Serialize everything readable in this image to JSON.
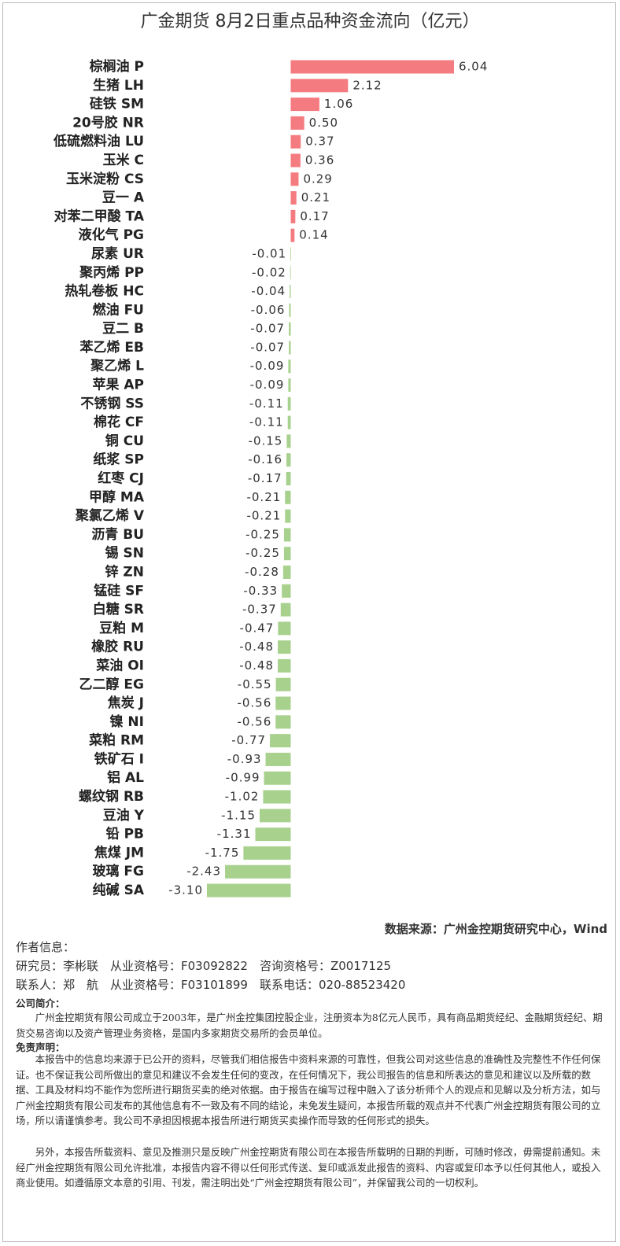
{
  "chart_data": {
    "type": "bar",
    "orientation": "horizontal",
    "title": "广金期货 8月2日重点品种资金流向（亿元）",
    "categories": [
      "棕榈油 P",
      "生猪 LH",
      "硅铁 SM",
      "20号胶 NR",
      "低硫燃料油 LU",
      "玉米 C",
      "玉米淀粉 CS",
      "豆一 A",
      "对苯二甲酸 TA",
      "液化气 PG",
      "尿素 UR",
      "聚丙烯 PP",
      "热轧卷板 HC",
      "燃油 FU",
      "豆二 B",
      "苯乙烯 EB",
      "聚乙烯 L",
      "苹果 AP",
      "不锈钢 SS",
      "棉花 CF",
      "铜 CU",
      "纸浆 SP",
      "红枣 CJ",
      "甲醇 MA",
      "聚氯乙烯 V",
      "沥青 BU",
      "锡 SN",
      "锌 ZN",
      "锰硅 SF",
      "白糖 SR",
      "豆粕 M",
      "橡胶 RU",
      "菜油 OI",
      "乙二醇 EG",
      "焦炭 J",
      "镍 NI",
      "菜粕 RM",
      "铁矿石 I",
      "铝 AL",
      "螺纹钢 RB",
      "豆油 Y",
      "铅 PB",
      "焦煤 JM",
      "玻璃 FG",
      "纯碱 SA"
    ],
    "values": [
      6.04,
      2.12,
      1.06,
      0.5,
      0.37,
      0.36,
      0.29,
      0.21,
      0.17,
      0.14,
      -0.01,
      -0.02,
      -0.04,
      -0.06,
      -0.07,
      -0.07,
      -0.09,
      -0.09,
      -0.11,
      -0.11,
      -0.15,
      -0.16,
      -0.17,
      -0.21,
      -0.21,
      -0.25,
      -0.25,
      -0.28,
      -0.33,
      -0.37,
      -0.47,
      -0.48,
      -0.48,
      -0.55,
      -0.56,
      -0.56,
      -0.77,
      -0.93,
      -0.99,
      -1.02,
      -1.15,
      -1.31,
      -1.75,
      -2.43,
      -3.1
    ],
    "value_labels": [
      "6.04",
      "2.12",
      "1.06",
      "0.50",
      "0.37",
      "0.36",
      "0.29",
      "0.21",
      "0.17",
      "0.14",
      "-0.01",
      "-0.02",
      "-0.04",
      "-0.06",
      "-0.07",
      "-0.07",
      "-0.09",
      "-0.09",
      "-0.11",
      "-0.11",
      "-0.15",
      "-0.16",
      "-0.17",
      "-0.21",
      "-0.21",
      "-0.25",
      "-0.25",
      "-0.28",
      "-0.33",
      "-0.37",
      "-0.47",
      "-0.48",
      "-0.48",
      "-0.55",
      "-0.56",
      "-0.56",
      "-0.77",
      "-0.93",
      "-0.99",
      "-1.02",
      "-1.15",
      "-1.31",
      "-1.75",
      "-2.43",
      "-3.10"
    ],
    "color_positive": "#f47b7f",
    "color_negative": "#a9d18e"
  },
  "footer": {
    "source": "数据来源：广州金控期货研究中心，Wind",
    "author_heading": "作者信息：",
    "researcher": "研究员：李彬联　从业资格号：F03092822　咨询资格号：Z0017125",
    "contact": "联系人：郑　航　从业资格号：F03101899　联系电话：020-88523420",
    "company_heading": "公司简介：",
    "company_text": "广州金控期货有限公司成立于2003年，是广州金控集团控股企业，注册资本为8亿元人民币，具有商品期货经纪、金融期货经纪、期货交易咨询以及资产管理业务资格，是国内多家期货交易所的会员单位。",
    "disclaimer_heading": "免责声明：",
    "disclaimer_paragraphs": [
      "本报告中的信息均来源于已公开的资料，尽管我们相信报告中资料来源的可靠性，但我公司对这些信息的准确性及完整性不作任何保证。也不保证我公司所做出的意见和建议不会发生任何的变改，在任何情况下，我公司报告的信息和所表达的意见和建议以及所载的数据、工具及材料均不能作为您所进行期货买卖的绝对依据。由于报告在编写过程中融入了该分析师个人的观点和见解以及分析方法，如与广州金控期货有限公司发布的其他信息有不一致及有不同的结论，未免发生疑问，本报告所载的观点并不代表广州金控期货有限公司的立场，所以请谨慎参考。我公司不承担因根据本报告所进行期货买卖操作而导致的任何形式的损失。",
      "另外，本报告所载资料、意见及推测只是反映广州金控期货有限公司在本报告所载明的日期的判断，可随时修改，毋需提前通知。未经广州金控期货有限公司允许批准，本报告内容不得以任何形式传送、复印或派发此报告的资料、内容或复印本予以任何其他人，或投入商业使用。如遵循原文本意的引用、刊发，需注明出处“广州金控期货有限公司”，并保留我公司的一切权利。"
    ]
  }
}
